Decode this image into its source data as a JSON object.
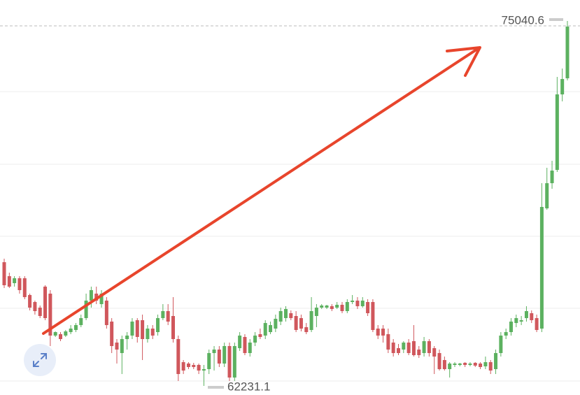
{
  "chart_data": {
    "type": "candlestick",
    "ylim": [
      61912,
      75777
    ],
    "up_color": "#5cb160",
    "down_color": "#d0575c",
    "open": [
      66574,
      66083,
      65838,
      66010,
      66010,
      65421,
      65176,
      64979,
      65716,
      65470,
      63998,
      64047,
      63998,
      64120,
      64194,
      64366,
      64611,
      65225,
      65470,
      65102,
      65225,
      64489,
      63752,
      63384,
      63875,
      63998,
      64538,
      64538,
      63875,
      64243,
      64120,
      64611,
      64857,
      64685,
      63875,
      63065,
      63016,
      62967,
      62967,
      62771,
      62820,
      63384,
      63507,
      63016,
      63630,
      62525,
      63556,
      63949,
      63384,
      63752,
      64047,
      63998,
      64120,
      64243,
      64489,
      64611,
      64783,
      64685,
      64611,
      64292,
      64194,
      64685,
      64979,
      64979,
      65029,
      64979,
      65078,
      64857,
      65176,
      65225,
      65029,
      65176,
      65176,
      64243,
      64243,
      64047,
      63752,
      63556,
      63507,
      63752,
      63802,
      63507,
      63384,
      63802,
      63556,
      63384,
      63139,
      62820,
      62967,
      62967,
      63041,
      62967,
      63041,
      63016,
      62918,
      63065,
      62820,
      63384,
      63998,
      64120,
      64439,
      64489,
      64611,
      64783,
      64611,
      64243,
      68464,
      69347,
      69814,
      72464,
      73029
    ],
    "high": [
      66697,
      66206,
      66083,
      66083,
      66083,
      65470,
      65225,
      65053,
      65765,
      65593,
      64145,
      64120,
      64194,
      64366,
      64439,
      64734,
      65470,
      65716,
      65716,
      65593,
      65348,
      64611,
      63875,
      63998,
      64120,
      64611,
      64611,
      64734,
      64366,
      64366,
      64734,
      65102,
      65102,
      65348,
      63998,
      63139,
      63065,
      63041,
      63016,
      62967,
      63507,
      63630,
      63630,
      63752,
      63752,
      63752,
      64120,
      64047,
      63875,
      64120,
      64243,
      64538,
      64489,
      64734,
      64979,
      65029,
      64881,
      64857,
      64734,
      64439,
      65348,
      65102,
      65102,
      65078,
      65102,
      65176,
      65176,
      65274,
      65421,
      65348,
      65348,
      65274,
      65274,
      64366,
      64366,
      64243,
      63875,
      63703,
      63802,
      63875,
      64366,
      63630,
      63949,
      63875,
      63630,
      63507,
      63262,
      63065,
      63065,
      63041,
      63065,
      63065,
      63065,
      63065,
      63262,
      63139,
      63507,
      64120,
      64243,
      64611,
      64734,
      64685,
      65029,
      64881,
      64734,
      69347,
      69888,
      70133,
      73078,
      73372,
      75040.6
    ],
    "low": [
      65667,
      65667,
      65716,
      65470,
      65274,
      64881,
      64734,
      64611,
      64538,
      63630,
      63949,
      63802,
      63949,
      64047,
      64120,
      64292,
      64538,
      64979,
      65102,
      64979,
      64243,
      63384,
      63016,
      62648,
      63507,
      63875,
      63752,
      63139,
      63752,
      63875,
      63998,
      64538,
      64366,
      63752,
      62403,
      62648,
      62820,
      62820,
      62648,
      62231.1,
      62648,
      62771,
      62894,
      62894,
      62403,
      62403,
      63458,
      63311,
      63262,
      63630,
      63875,
      63875,
      64047,
      64120,
      64366,
      64489,
      64538,
      64120,
      64145,
      64047,
      64120,
      64292,
      64930,
      64930,
      64857,
      64930,
      64783,
      64783,
      65102,
      64930,
      64979,
      64685,
      64120,
      63875,
      63752,
      63384,
      63262,
      63311,
      63384,
      63311,
      63262,
      63213,
      63262,
      63262,
      62648,
      62771,
      62771,
      62525,
      62894,
      62918,
      62894,
      62918,
      62894,
      62820,
      62820,
      62648,
      62648,
      63262,
      63875,
      63998,
      64292,
      64366,
      64489,
      64439,
      64120,
      64120,
      68415,
      69151,
      69740,
      72219,
      72955
    ],
    "close": [
      65765,
      65716,
      66010,
      65593,
      65348,
      64979,
      64857,
      64685,
      64611,
      63998,
      64120,
      63875,
      64145,
      64243,
      64366,
      64611,
      65225,
      65593,
      65225,
      65470,
      64366,
      63630,
      63507,
      63875,
      63998,
      64489,
      63949,
      63875,
      64243,
      63998,
      64611,
      64857,
      64489,
      63875,
      62648,
      62771,
      62894,
      62894,
      62771,
      62820,
      63384,
      63507,
      63016,
      63630,
      62525,
      63630,
      63998,
      63384,
      63752,
      63998,
      63949,
      64439,
      64366,
      64587,
      64857,
      64930,
      64611,
      64194,
      64243,
      64120,
      64857,
      64979,
      65053,
      65053,
      64930,
      65078,
      64857,
      65176,
      65225,
      65029,
      65225,
      64783,
      64194,
      63998,
      63998,
      63507,
      63384,
      63384,
      63752,
      63384,
      63311,
      63311,
      63802,
      63384,
      63262,
      62820,
      62820,
      63016,
      63016,
      63016,
      62967,
      63016,
      62943,
      62894,
      63065,
      62771,
      63384,
      63998,
      64120,
      64489,
      64611,
      64538,
      64857,
      64538,
      64194,
      68513,
      69347,
      69789,
      72464,
      73004,
      74844
    ]
  }
}
